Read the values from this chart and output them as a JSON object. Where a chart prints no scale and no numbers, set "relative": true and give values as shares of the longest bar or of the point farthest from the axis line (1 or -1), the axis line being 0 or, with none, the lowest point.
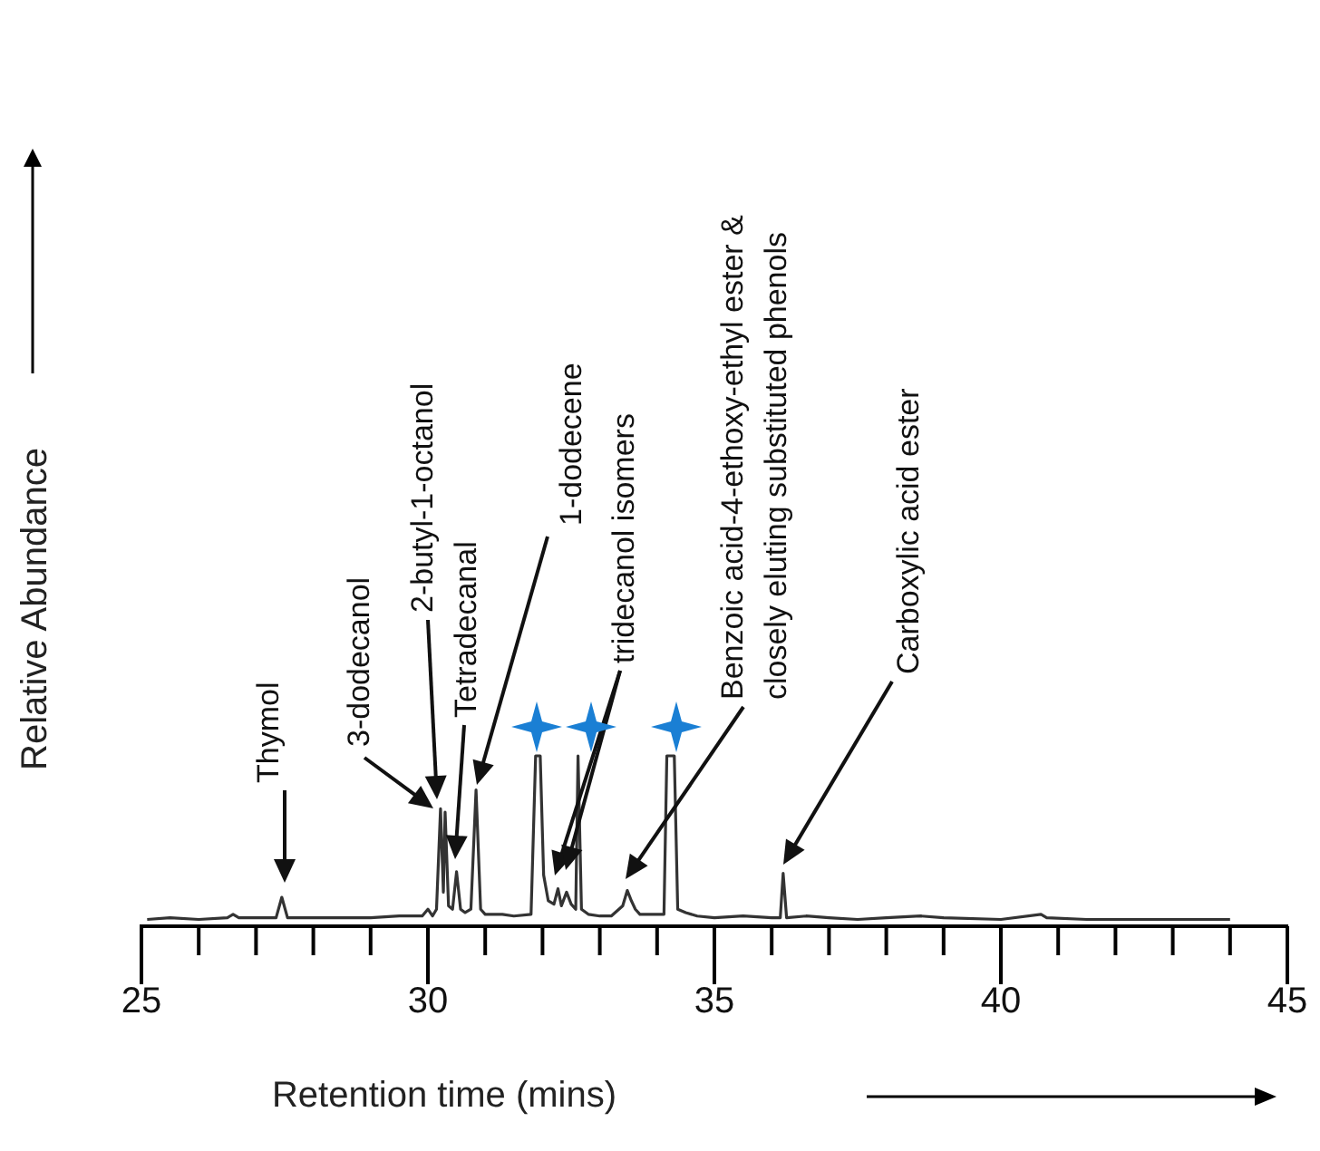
{
  "chart_data": {
    "type": "line",
    "relative": true,
    "color": "#333333",
    "marker": "none",
    "grid": false,
    "legend": false,
    "tick_labels": "x",
    "xlabel": "Retention time (mins)",
    "ylabel": "Relative Abundance",
    "xlim": [
      25,
      45
    ],
    "xticks": [
      25,
      {
        "value": 26,
        "label": null
      },
      {
        "value": 27,
        "label": null
      },
      {
        "value": 28,
        "label": null
      },
      {
        "value": 29,
        "label": null
      },
      30,
      {
        "value": 31,
        "label": null
      },
      {
        "value": 32,
        "label": null
      },
      {
        "value": 33,
        "label": null
      },
      {
        "value": 34,
        "label": null
      },
      35,
      {
        "value": 36,
        "label": null
      },
      {
        "value": 37,
        "label": null
      },
      {
        "value": 38,
        "label": null
      },
      {
        "value": 39,
        "label": null
      },
      40,
      {
        "value": 41,
        "label": null
      },
      {
        "value": 42,
        "label": null
      },
      {
        "value": 43,
        "label": null
      },
      {
        "value": 44,
        "label": null
      },
      45
    ],
    "x": [
      25.1,
      25.5,
      26.0,
      26.5,
      26.6,
      26.7,
      27.0,
      27.35,
      27.45,
      27.55,
      28.0,
      28.5,
      29.0,
      29.5,
      29.9,
      30.0,
      30.08,
      30.15,
      30.22,
      30.27,
      30.3,
      30.36,
      30.43,
      30.5,
      30.57,
      30.65,
      30.75,
      30.84,
      30.92,
      31.0,
      31.3,
      31.5,
      31.8,
      31.88,
      31.96,
      32.02,
      32.1,
      32.2,
      32.27,
      32.33,
      32.42,
      32.5,
      32.58,
      32.62,
      32.68,
      32.8,
      33.0,
      33.2,
      33.4,
      33.48,
      33.55,
      33.62,
      33.7,
      34.0,
      34.12,
      34.17,
      34.3,
      34.36,
      34.5,
      34.7,
      35.0,
      35.5,
      36.0,
      36.15,
      36.2,
      36.26,
      36.6,
      37.0,
      37.5,
      38.0,
      38.6,
      39.0,
      40.0,
      40.7,
      40.8,
      41.5,
      42.5,
      44.0
    ],
    "values": [
      0.04,
      0.05,
      0.04,
      0.05,
      0.07,
      0.05,
      0.05,
      0.05,
      0.17,
      0.05,
      0.05,
      0.05,
      0.05,
      0.06,
      0.06,
      0.1,
      0.06,
      0.1,
      0.69,
      0.2,
      0.67,
      0.12,
      0.1,
      0.32,
      0.1,
      0.08,
      0.1,
      0.8,
      0.1,
      0.07,
      0.07,
      0.06,
      0.07,
      1.0,
      1.0,
      0.3,
      0.15,
      0.13,
      0.22,
      0.12,
      0.2,
      0.13,
      0.1,
      1.0,
      0.1,
      0.07,
      0.06,
      0.06,
      0.12,
      0.21,
      0.15,
      0.1,
      0.07,
      0.07,
      0.07,
      1.0,
      1.0,
      0.1,
      0.08,
      0.06,
      0.05,
      0.06,
      0.05,
      0.05,
      0.31,
      0.05,
      0.06,
      0.05,
      0.04,
      0.05,
      0.06,
      0.05,
      0.04,
      0.07,
      0.05,
      0.04,
      0.04,
      0.04
    ],
    "annotations": [
      "Thymol",
      "3-dodecanol",
      "2-butyl-1-octanol",
      "Tetradecanal",
      "1-dodecene",
      "tridecanol isomers",
      "Benzoic acid-4-ethoxy-ethyl ester &\nclosely eluting substituted phenols",
      "Carboxylic acid ester"
    ]
  }
}
